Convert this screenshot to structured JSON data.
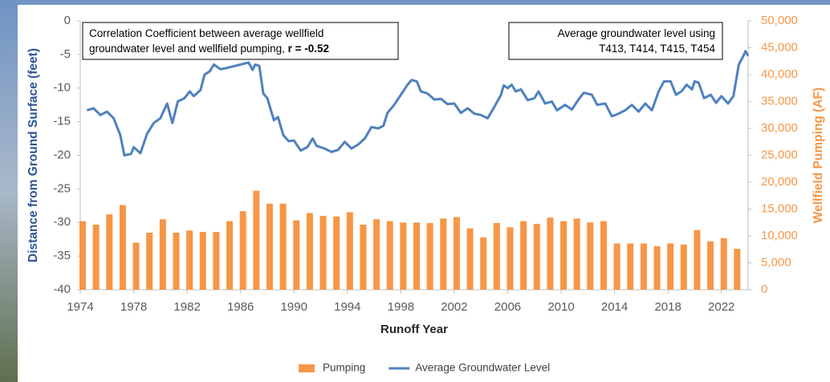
{
  "chart_data": {
    "type": "combo",
    "xlabel": "Runoff Year",
    "ylabel": "Distance from Ground Surface (feet)",
    "y2label": "Wellfield Pumping (AF)",
    "xlim": [
      1974,
      2024
    ],
    "xticks": [
      1974,
      1978,
      1982,
      1986,
      1990,
      1994,
      1998,
      2002,
      2006,
      2010,
      2014,
      2018,
      2022
    ],
    "ylim": [
      -40,
      0
    ],
    "yticks": [
      0,
      -5,
      -10,
      -15,
      -20,
      -25,
      -30,
      -35,
      -40
    ],
    "y2lim": [
      0,
      50000
    ],
    "y2ticks": [
      {
        "value": 50000,
        "label": "50,000"
      },
      {
        "value": 45000,
        "label": "45,000"
      },
      {
        "value": 40000,
        "label": "40,000"
      },
      {
        "value": 35000,
        "label": "35,000"
      },
      {
        "value": 30000,
        "label": "30,000"
      },
      {
        "value": 25000,
        "label": "25,000"
      },
      {
        "value": 20000,
        "label": "20,000"
      },
      {
        "value": 15000,
        "label": "15,000"
      },
      {
        "value": 10000,
        "label": "10,000"
      },
      {
        "value": 5000,
        "label": "5,000"
      },
      0
    ],
    "legend": "bottom",
    "annotations": [
      {
        "lines": [
          "Correlation Coefficient between average wellfield",
          "groundwater level and wellfield pumping, "
        ],
        "bold": "r = -0.52"
      },
      {
        "lines": [
          "Average groundwater level using",
          "T413, T414, T415, T454"
        ]
      }
    ],
    "series": [
      {
        "name": "Pumping",
        "type": "bar",
        "axis": "y2",
        "color": "#f79646",
        "x": [
          1974,
          1975,
          1976,
          1977,
          1978,
          1979,
          1980,
          1981,
          1982,
          1983,
          1984,
          1985,
          1986,
          1987,
          1988,
          1989,
          1990,
          1991,
          1992,
          1993,
          1994,
          1995,
          1996,
          1997,
          1998,
          1999,
          2000,
          2001,
          2002,
          2003,
          2004,
          2005,
          2006,
          2007,
          2008,
          2009,
          2010,
          2011,
          2012,
          2013,
          2014,
          2015,
          2016,
          2017,
          2018,
          2019,
          2020,
          2021,
          2022,
          2023
        ],
        "values": [
          12750,
          12100,
          14000,
          15750,
          8750,
          10600,
          13100,
          10600,
          11000,
          10750,
          10750,
          12750,
          14600,
          18400,
          16000,
          16000,
          12900,
          14250,
          13750,
          13600,
          14400,
          12100,
          13100,
          12750,
          12500,
          12500,
          12400,
          13250,
          13500,
          11400,
          9750,
          12400,
          11600,
          12750,
          12250,
          13400,
          12750,
          13250,
          12500,
          12750,
          8600,
          8600,
          8600,
          8100,
          8600,
          8400,
          11100,
          9000,
          9600,
          7600
        ]
      },
      {
        "name": "Average Groundwater Level",
        "type": "line",
        "color": "#4f81bd",
        "x": [
          1974.5,
          1975,
          1975.5,
          1976,
          1976.5,
          1977,
          1977.3,
          1977.8,
          1978,
          1978.5,
          1979,
          1979.5,
          1980,
          1980.5,
          1980.9,
          1981.3,
          1981.8,
          1982.2,
          1982.5,
          1983,
          1983.3,
          1983.7,
          1984,
          1984.5,
          1985,
          1986,
          1986.6,
          1986.9,
          1987.1,
          1987.4,
          1987.7,
          1988,
          1988.5,
          1988.8,
          1989.2,
          1989.6,
          1990,
          1990.5,
          1991,
          1991.4,
          1991.7,
          1992.3,
          1992.8,
          1993.3,
          1993.8,
          1994.3,
          1994.8,
          1995.3,
          1995.8,
          1996.3,
          1996.7,
          1997,
          1997.5,
          1998,
          1998.5,
          1998.8,
          1999.2,
          1999.5,
          2000,
          2000.5,
          2001,
          2001.5,
          2002,
          2002.5,
          2003,
          2003.5,
          2004,
          2004.5,
          2005,
          2005.5,
          2005.7,
          2006,
          2006.3,
          2006.6,
          2007,
          2007.5,
          2008,
          2008.3,
          2008.8,
          2009.3,
          2009.7,
          2010.3,
          2010.8,
          2011.3,
          2011.7,
          2012.3,
          2012.7,
          2013.3,
          2013.8,
          2014.3,
          2014.8,
          2015.3,
          2015.8,
          2016.3,
          2016.8,
          2017.3,
          2017.7,
          2018.2,
          2018.6,
          2019,
          2019.4,
          2019.8,
          2020,
          2020.3,
          2020.7,
          2021.2,
          2021.6,
          2022,
          2022.5,
          2022.9,
          2023.3,
          2023.7,
          2023.8,
          2024
        ],
        "values": [
          -13.3,
          -13,
          -14,
          -13.5,
          -14.5,
          -17,
          -20,
          -19.8,
          -18.8,
          -19.7,
          -16.8,
          -15.2,
          -14.5,
          -12.3,
          -15.2,
          -12,
          -11.5,
          -10.5,
          -11.2,
          -10.3,
          -8,
          -7.5,
          -6.5,
          -7.2,
          -7,
          -6.5,
          -6.2,
          -7.3,
          -6.5,
          -6.7,
          -10.8,
          -11.5,
          -14.8,
          -14.3,
          -17,
          -17.9,
          -17.8,
          -19.3,
          -18.8,
          -17.5,
          -18.6,
          -19,
          -19.5,
          -19.2,
          -18,
          -19,
          -18.4,
          -17.5,
          -15.8,
          -16,
          -15.6,
          -13.7,
          -12.5,
          -11,
          -9.5,
          -8.8,
          -9,
          -10.5,
          -10.8,
          -11.7,
          -11.6,
          -12.4,
          -12.3,
          -13.7,
          -13,
          -13.8,
          -14,
          -14.5,
          -12.8,
          -11,
          -9.6,
          -10,
          -9.5,
          -10.5,
          -10.2,
          -11.8,
          -11.5,
          -10.5,
          -12.3,
          -12,
          -13.3,
          -12.5,
          -13.2,
          -11.7,
          -10.7,
          -11,
          -12.5,
          -12.3,
          -14.2,
          -13.8,
          -13.3,
          -12.5,
          -13.5,
          -12.3,
          -13.3,
          -10.5,
          -9,
          -9,
          -11,
          -10.5,
          -9.5,
          -10.2,
          -9,
          -9.2,
          -11.5,
          -11,
          -12.2,
          -11.2,
          -12.3,
          -11.2,
          -6.5,
          -5,
          -4.5,
          -5.2
        ]
      }
    ]
  }
}
